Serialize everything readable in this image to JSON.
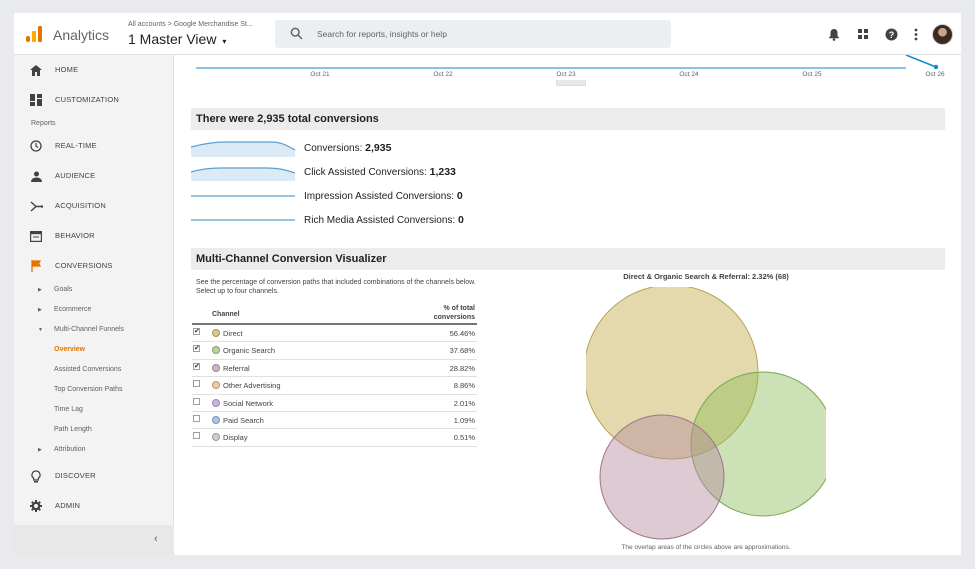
{
  "header": {
    "app_name": "Analytics",
    "account_path": "All accounts > Google Merchandise St...",
    "view_name": "1 Master View",
    "search_placeholder": "Search for reports, insights or help"
  },
  "sidebar": {
    "top_items": [
      {
        "label": "HOME",
        "icon": "home-icon"
      },
      {
        "label": "CUSTOMIZATION",
        "icon": "dashboard-icon"
      }
    ],
    "reports_label": "Reports",
    "report_items": [
      {
        "label": "REAL-TIME",
        "icon": "clock-icon"
      },
      {
        "label": "AUDIENCE",
        "icon": "person-icon"
      },
      {
        "label": "ACQUISITION",
        "icon": "acquisition-icon"
      },
      {
        "label": "BEHAVIOR",
        "icon": "behavior-icon"
      },
      {
        "label": "CONVERSIONS",
        "icon": "flag-icon"
      }
    ],
    "conversion_subitems": [
      {
        "label": "Goals"
      },
      {
        "label": "Ecommerce"
      },
      {
        "label": "Multi-Channel Funnels"
      },
      {
        "label": "Overview"
      },
      {
        "label": "Assisted Conversions"
      },
      {
        "label": "Top Conversion Paths"
      },
      {
        "label": "Time Lag"
      },
      {
        "label": "Path Length"
      },
      {
        "label": "Attribution"
      }
    ],
    "bottom_items": [
      {
        "label": "DISCOVER",
        "icon": "lightbulb-icon"
      },
      {
        "label": "ADMIN",
        "icon": "gear-icon"
      }
    ],
    "collapse_glyph": "‹"
  },
  "timeline": {
    "ticks": [
      "Oct 21",
      "Oct 22",
      "Oct 23",
      "Oct 24",
      "Oct 25",
      "Oct 26"
    ]
  },
  "total_conversions": {
    "heading": "There were 2,935 total conversions",
    "rows": [
      {
        "label": "Conversions:",
        "value": "2,935"
      },
      {
        "label": "Click Assisted Conversions:",
        "value": "1,233"
      },
      {
        "label": "Impression Assisted Conversions:",
        "value": "0"
      },
      {
        "label": "Rich Media Assisted Conversions:",
        "value": "0"
      }
    ]
  },
  "visualizer": {
    "heading": "Multi-Channel Conversion Visualizer",
    "description": "See the percentage of conversion paths that included combinations of the channels below. Select up to four channels.",
    "col_channel": "Channel",
    "col_pct": "% of total conversions",
    "channels": [
      {
        "name": "Direct",
        "pct": "56.46%",
        "checked": true,
        "color": "#d9c98a"
      },
      {
        "name": "Organic Search",
        "pct": "37.68%",
        "checked": true,
        "color": "#b9d19a"
      },
      {
        "name": "Referral",
        "pct": "28.82%",
        "checked": true,
        "color": "#d4b3be"
      },
      {
        "name": "Other Advertising",
        "pct": "8.86%",
        "checked": false,
        "color": "#f2c9a0"
      },
      {
        "name": "Social Network",
        "pct": "2.01%",
        "checked": false,
        "color": "#c9b6e0"
      },
      {
        "name": "Paid Search",
        "pct": "1.09%",
        "checked": false,
        "color": "#a9c4ea"
      },
      {
        "name": "Display",
        "pct": "0.51%",
        "checked": false,
        "color": "#cfcfcf"
      }
    ],
    "venn_title": "Direct & Organic Search & Referral: 2.32% (68)",
    "venn_note": "The overlap areas of the circles above are approximations."
  }
}
